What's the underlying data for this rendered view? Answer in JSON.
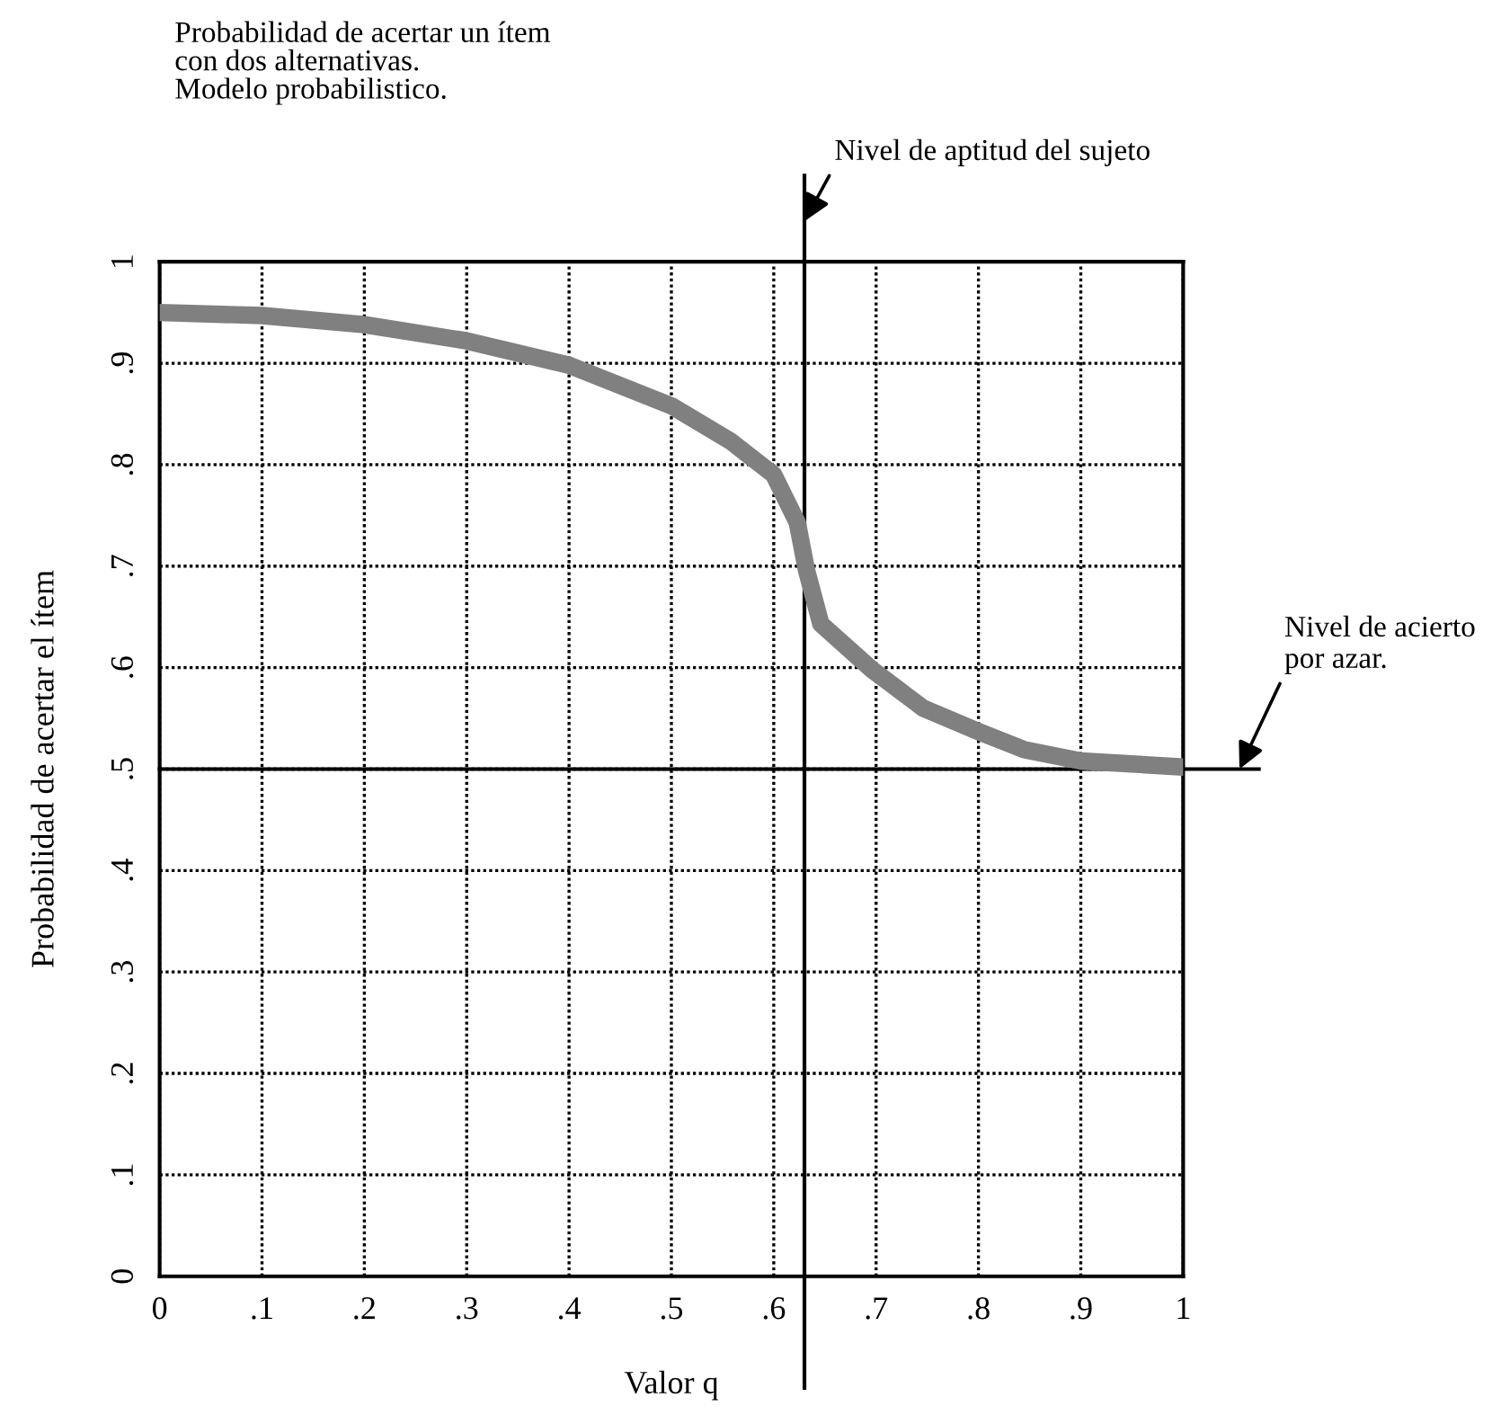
{
  "chart_data": {
    "type": "line",
    "title": "Probabilidad de acertar un ítem\ncon dos alternativas.\nModelo probabilistico.",
    "xlabel": "Valor q",
    "ylabel": "Probabilidad de acertar el ítem",
    "x": [
      0,
      0.1,
      0.2,
      0.3,
      0.4,
      0.5,
      0.558,
      0.6,
      0.623,
      0.632,
      0.646,
      0.696,
      0.746,
      0.8,
      0.845,
      0.9,
      1
    ],
    "series": [
      {
        "color": "#808080",
        "values": [
          0.95,
          0.947,
          0.938,
          0.922,
          0.898,
          0.858,
          0.823,
          0.79,
          0.743,
          0.696,
          0.643,
          0.598,
          0.56,
          0.537,
          0.519,
          0.508,
          0.502
        ]
      }
    ],
    "xlim": [
      0,
      1
    ],
    "ylim": [
      0,
      1
    ],
    "xticks": [
      0,
      {
        "value": 0.1,
        "label": ".1"
      },
      {
        "value": 0.2,
        "label": ".2"
      },
      {
        "value": 0.3,
        "label": ".3"
      },
      {
        "value": 0.4,
        "label": ".4"
      },
      {
        "value": 0.5,
        "label": ".5"
      },
      {
        "value": 0.6,
        "label": ".6"
      },
      {
        "value": 0.7,
        "label": ".7"
      },
      {
        "value": 0.8,
        "label": ".8"
      },
      {
        "value": 0.9,
        "label": ".9"
      },
      1
    ],
    "yticks": [
      0,
      {
        "value": 0.1,
        "label": ".1"
      },
      {
        "value": 0.2,
        "label": ".2"
      },
      {
        "value": 0.3,
        "label": ".3"
      },
      {
        "value": 0.4,
        "label": ".4"
      },
      {
        "value": 0.5,
        "label": ".5"
      },
      {
        "value": 0.6,
        "label": ".6"
      },
      {
        "value": 0.7,
        "label": ".7"
      },
      {
        "value": 0.8,
        "label": ".8"
      },
      {
        "value": 0.9,
        "label": ".9"
      },
      1
    ],
    "ref_lines": [
      {
        "axis": "x",
        "value": 0.63,
        "color": "#000000"
      },
      {
        "axis": "y",
        "value": 0.5,
        "color": "#000000"
      }
    ],
    "annotations": [
      {
        "text": "Nivel de aptitud del sujeto",
        "x": 0.63,
        "y": 1.04
      },
      {
        "text": "Nivel de acierto\npor azar.",
        "x": 1.055,
        "y": 0.5
      }
    ],
    "grid": true,
    "line_style": "solid",
    "marker": "none"
  }
}
